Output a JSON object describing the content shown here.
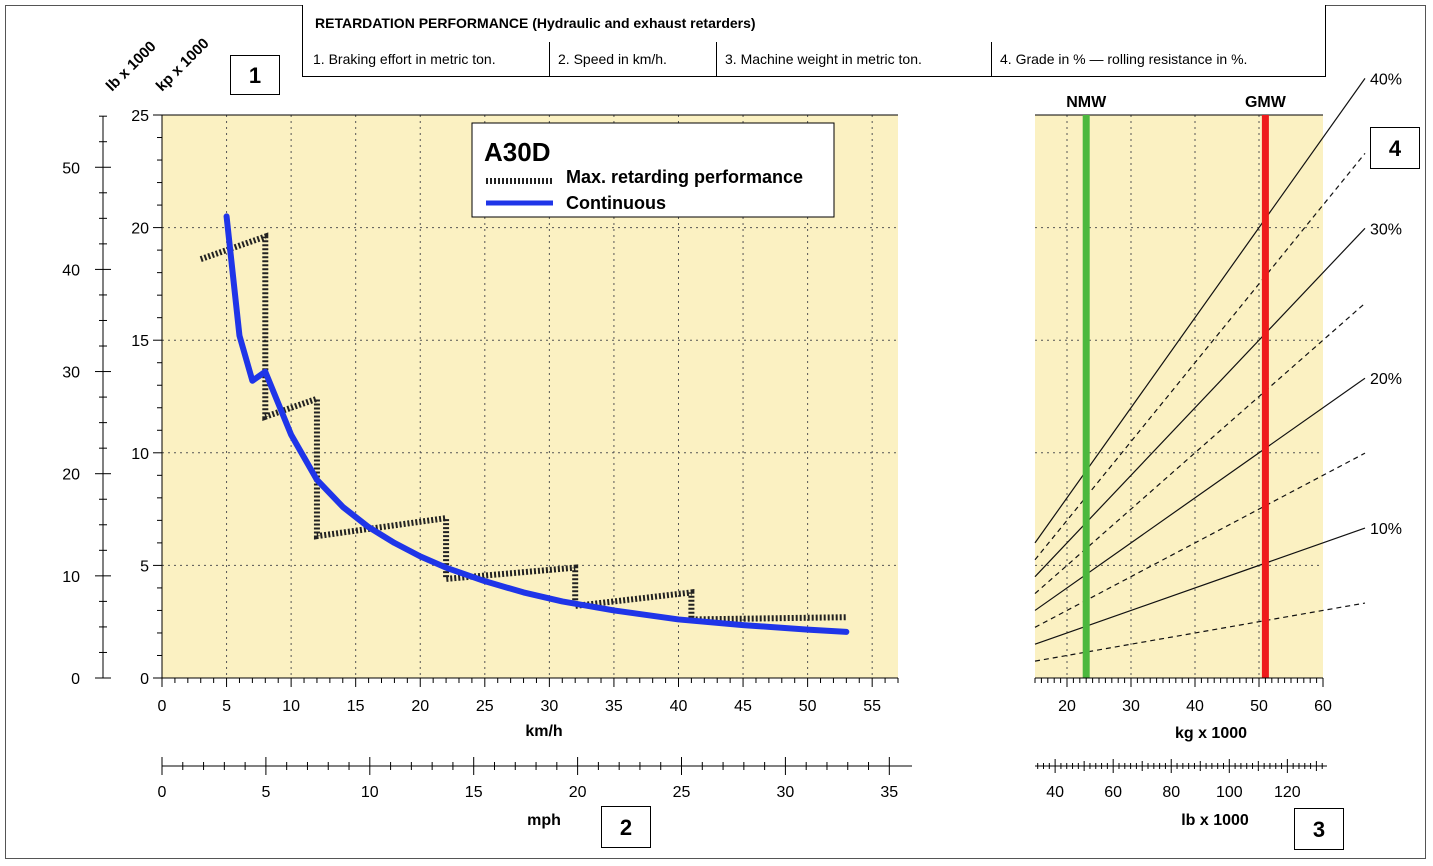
{
  "header": {
    "title": "RETARDATION PERFORMANCE (Hydraulic and exhaust retarders)",
    "items": [
      "1. Braking effort in metric ton.",
      "2. Speed in km/h.",
      "3. Machine weight in metric ton.",
      "4. Grade in % — rolling resistance in %."
    ]
  },
  "boxes": {
    "b1": "1",
    "b2": "2",
    "b3": "3",
    "b4": "4"
  },
  "colors": {
    "plot_bg": "#fbf1c2",
    "continuous": "#1f35e8",
    "nmw": "#4cb83e",
    "gmw": "#ee1b1b"
  },
  "chart_data": [
    {
      "type": "line",
      "model": "A30D",
      "xlabel": "km/h",
      "xlim": [
        0,
        57
      ],
      "x_ticks": [
        0,
        5,
        10,
        15,
        20,
        25,
        30,
        35,
        40,
        45,
        50,
        55
      ],
      "ylim": [
        0,
        25
      ],
      "y_ticks_kp": [
        0,
        5,
        10,
        15,
        20,
        25
      ],
      "y_ticks_lb": [
        0,
        10,
        20,
        30,
        40,
        50
      ],
      "y_axis_label_kp": "kp x 1000",
      "y_axis_label_lb": "lb x 1000",
      "mph_axis": {
        "label": "mph",
        "ticks": [
          0,
          5,
          10,
          15,
          20,
          25,
          30,
          35
        ]
      },
      "grid": true,
      "legend": {
        "position": "top-right"
      },
      "series": [
        {
          "name": "Max. retarding performance",
          "style": "dotted",
          "points": [
            [
              3,
              18.6
            ],
            [
              8,
              19.6
            ],
            [
              8,
              11.6
            ],
            [
              12,
              12.4
            ],
            [
              12,
              6.3
            ],
            [
              22,
              7.1
            ],
            [
              22,
              4.4
            ],
            [
              32,
              4.9
            ],
            [
              32,
              3.2
            ],
            [
              41,
              3.8
            ],
            [
              41,
              2.6
            ],
            [
              53,
              2.7
            ]
          ]
        },
        {
          "name": "Continuous",
          "style": "solid",
          "points": [
            [
              5,
              20.5
            ],
            [
              6,
              15.2
            ],
            [
              7,
              13.2
            ],
            [
              8,
              13.6
            ],
            [
              10,
              10.8
            ],
            [
              12,
              8.8
            ],
            [
              14,
              7.6
            ],
            [
              16,
              6.7
            ],
            [
              18,
              6.0
            ],
            [
              20,
              5.4
            ],
            [
              22,
              4.9
            ],
            [
              25,
              4.3
            ],
            [
              28,
              3.8
            ],
            [
              31,
              3.4
            ],
            [
              35,
              3.0
            ],
            [
              40,
              2.6
            ],
            [
              45,
              2.35
            ],
            [
              50,
              2.15
            ],
            [
              53,
              2.05
            ]
          ]
        }
      ]
    },
    {
      "type": "line",
      "xlabel": "kg x 1000",
      "xlim": [
        15,
        60
      ],
      "x_ticks": [
        20,
        30,
        40,
        50,
        60
      ],
      "lb_axis": {
        "label": "lb x 1000",
        "ticks": [
          40,
          60,
          80,
          100,
          120
        ]
      },
      "grid": true,
      "markers": [
        {
          "name": "NMW",
          "x": 23
        },
        {
          "name": "GMW",
          "x": 51
        }
      ],
      "grade_labels": [
        "40%",
        "30%",
        "20%",
        "10%"
      ],
      "lines": [
        {
          "grade": 10,
          "style": "solid"
        },
        {
          "grade": 15,
          "style": "dashed"
        },
        {
          "grade": 20,
          "style": "solid"
        },
        {
          "grade": 25,
          "style": "dashed"
        },
        {
          "grade": 30,
          "style": "solid"
        },
        {
          "grade": 35,
          "style": "dashed"
        },
        {
          "grade": 40,
          "style": "solid"
        },
        {
          "grade": 5,
          "style": "dashed"
        }
      ]
    }
  ]
}
